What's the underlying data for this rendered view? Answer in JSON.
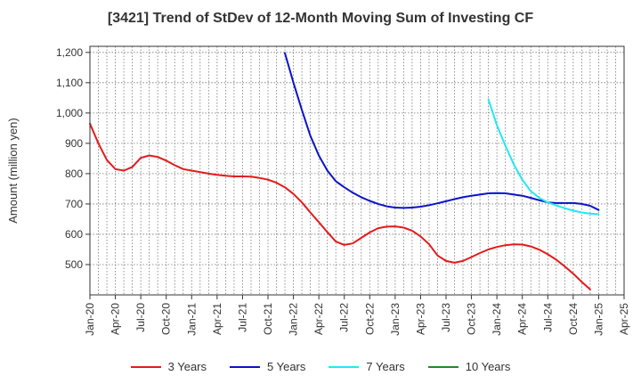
{
  "chart_data": {
    "type": "line",
    "title": "[3421]  Trend of StDev of 12-Month Moving Sum of Investing CF",
    "ylabel": "Amount (million yen)",
    "xlabel": "",
    "ylim": [
      400,
      1220
    ],
    "yticks": [
      500,
      600,
      700,
      800,
      900,
      1000,
      1100,
      1200
    ],
    "ytick_labels": [
      "500",
      "600",
      "700",
      "800",
      "900",
      "1,000",
      "1,100",
      "1,200"
    ],
    "xticks": [
      "Jan-20",
      "Apr-20",
      "Jul-20",
      "Oct-20",
      "Jan-21",
      "Apr-21",
      "Jul-21",
      "Oct-21",
      "Jan-22",
      "Apr-22",
      "Jul-22",
      "Oct-22",
      "Jan-23",
      "Apr-23",
      "Jul-23",
      "Oct-23",
      "Jan-24",
      "Apr-24",
      "Jul-24",
      "Oct-24",
      "Jan-25",
      "Apr-25"
    ],
    "grid": true,
    "legend_position": "bottom",
    "series": [
      {
        "name": "3 Years",
        "color": "#e31a1c",
        "points": [
          [
            "Jan-20",
            965
          ],
          [
            "Feb-20",
            900
          ],
          [
            "Mar-20",
            845
          ],
          [
            "Apr-20",
            815
          ],
          [
            "May-20",
            810
          ],
          [
            "Jun-20",
            822
          ],
          [
            "Jul-20",
            852
          ],
          [
            "Aug-20",
            860
          ],
          [
            "Sep-20",
            855
          ],
          [
            "Oct-20",
            843
          ],
          [
            "Nov-20",
            828
          ],
          [
            "Dec-20",
            815
          ],
          [
            "Jan-21",
            810
          ],
          [
            "Feb-21",
            805
          ],
          [
            "Mar-21",
            800
          ],
          [
            "Apr-21",
            796
          ],
          [
            "May-21",
            793
          ],
          [
            "Jun-21",
            791
          ],
          [
            "Jul-21",
            791
          ],
          [
            "Aug-21",
            790
          ],
          [
            "Sep-21",
            786
          ],
          [
            "Oct-21",
            780
          ],
          [
            "Nov-21",
            770
          ],
          [
            "Dec-21",
            755
          ],
          [
            "Jan-22",
            733
          ],
          [
            "Feb-22",
            705
          ],
          [
            "Mar-22",
            672
          ],
          [
            "Apr-22",
            640
          ],
          [
            "May-22",
            607
          ],
          [
            "Jun-22",
            576
          ],
          [
            "Jul-22",
            565
          ],
          [
            "Aug-22",
            570
          ],
          [
            "Sep-22",
            588
          ],
          [
            "Oct-22",
            606
          ],
          [
            "Nov-22",
            620
          ],
          [
            "Dec-22",
            625
          ],
          [
            "Jan-23",
            626
          ],
          [
            "Feb-23",
            622
          ],
          [
            "Mar-23",
            612
          ],
          [
            "Apr-23",
            593
          ],
          [
            "May-23",
            567
          ],
          [
            "Jun-23",
            530
          ],
          [
            "Jul-23",
            512
          ],
          [
            "Aug-23",
            506
          ],
          [
            "Sep-23",
            512
          ],
          [
            "Oct-23",
            525
          ],
          [
            "Nov-23",
            538
          ],
          [
            "Dec-23",
            550
          ],
          [
            "Jan-24",
            558
          ],
          [
            "Feb-24",
            564
          ],
          [
            "Mar-24",
            567
          ],
          [
            "Apr-24",
            566
          ],
          [
            "May-24",
            560
          ],
          [
            "Jun-24",
            549
          ],
          [
            "Jul-24",
            534
          ],
          [
            "Aug-24",
            516
          ],
          [
            "Sep-24",
            494
          ],
          [
            "Oct-24",
            470
          ],
          [
            "Nov-24",
            443
          ],
          [
            "Dec-24",
            418
          ]
        ]
      },
      {
        "name": "5 Years",
        "color": "#0a14c8",
        "points": [
          [
            "Dec-21",
            1198
          ],
          [
            "Jan-22",
            1100
          ],
          [
            "Feb-22",
            1010
          ],
          [
            "Mar-22",
            925
          ],
          [
            "Apr-22",
            860
          ],
          [
            "May-22",
            810
          ],
          [
            "Jun-22",
            775
          ],
          [
            "Jul-22",
            755
          ],
          [
            "Aug-22",
            737
          ],
          [
            "Sep-22",
            722
          ],
          [
            "Oct-22",
            710
          ],
          [
            "Nov-22",
            700
          ],
          [
            "Dec-22",
            692
          ],
          [
            "Jan-23",
            688
          ],
          [
            "Feb-23",
            687
          ],
          [
            "Mar-23",
            688
          ],
          [
            "Apr-23",
            691
          ],
          [
            "May-23",
            696
          ],
          [
            "Jun-23",
            702
          ],
          [
            "Jul-23",
            709
          ],
          [
            "Aug-23",
            716
          ],
          [
            "Sep-23",
            722
          ],
          [
            "Oct-23",
            727
          ],
          [
            "Nov-23",
            731
          ],
          [
            "Dec-23",
            735
          ],
          [
            "Jan-24",
            736
          ],
          [
            "Feb-24",
            735
          ],
          [
            "Mar-24",
            731
          ],
          [
            "Apr-24",
            727
          ],
          [
            "May-24",
            720
          ],
          [
            "Jun-24",
            712
          ],
          [
            "Jul-24",
            705
          ],
          [
            "Aug-24",
            703
          ],
          [
            "Sep-24",
            703
          ],
          [
            "Oct-24",
            703
          ],
          [
            "Nov-24",
            700
          ],
          [
            "Dec-24",
            694
          ],
          [
            "Jan-25",
            680
          ]
        ]
      },
      {
        "name": "7 Years",
        "color": "#22e8f0",
        "points": [
          [
            "Dec-23",
            1045
          ],
          [
            "Jan-24",
            960
          ],
          [
            "Feb-24",
            892
          ],
          [
            "Mar-24",
            830
          ],
          [
            "Apr-24",
            780
          ],
          [
            "May-24",
            742
          ],
          [
            "Jun-24",
            720
          ],
          [
            "Jul-24",
            705
          ],
          [
            "Aug-24",
            695
          ],
          [
            "Sep-24",
            686
          ],
          [
            "Oct-24",
            678
          ],
          [
            "Nov-24",
            672
          ],
          [
            "Dec-24",
            668
          ],
          [
            "Jan-25",
            666
          ]
        ]
      },
      {
        "name": "10 Years",
        "color": "#228b22",
        "points": []
      }
    ]
  }
}
